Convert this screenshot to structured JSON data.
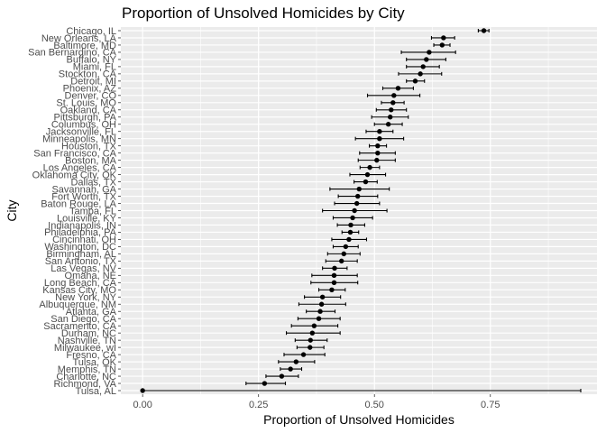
{
  "chart_data": {
    "type": "scatter",
    "title": "Proportion of Unsolved Homicides by City",
    "xlabel": "Proportion of Unsolved Homicides",
    "ylabel": "City",
    "xlim": [
      -0.047,
      0.98
    ],
    "x_ticks": [
      0.0,
      0.25,
      0.5,
      0.75
    ],
    "x_tick_labels": [
      "0.00",
      "0.25",
      "0.50",
      "0.75"
    ],
    "grid": true,
    "point_color": "#000000",
    "panel_color": "#ebebeb",
    "grid_color": "#ffffff",
    "cities": [
      {
        "name": "Chicago, IL",
        "estimate": 0.736,
        "low": 0.724,
        "high": 0.747
      },
      {
        "name": "New Orleans, LA",
        "estimate": 0.649,
        "low": 0.623,
        "high": 0.673
      },
      {
        "name": "Baltimore, MD",
        "estimate": 0.646,
        "low": 0.628,
        "high": 0.663
      },
      {
        "name": "San Bernardino, CA",
        "estimate": 0.618,
        "low": 0.558,
        "high": 0.675
      },
      {
        "name": "Buffalo, NY",
        "estimate": 0.612,
        "low": 0.569,
        "high": 0.654
      },
      {
        "name": "Miami, FL",
        "estimate": 0.605,
        "low": 0.569,
        "high": 0.64
      },
      {
        "name": "Stockton, CA",
        "estimate": 0.599,
        "low": 0.552,
        "high": 0.645
      },
      {
        "name": "Detroit, MI",
        "estimate": 0.588,
        "low": 0.569,
        "high": 0.608
      },
      {
        "name": "Phoenix, AZ",
        "estimate": 0.551,
        "low": 0.518,
        "high": 0.584
      },
      {
        "name": "Denver, CO",
        "estimate": 0.542,
        "low": 0.485,
        "high": 0.598
      },
      {
        "name": "St. Louis, MO",
        "estimate": 0.54,
        "low": 0.515,
        "high": 0.564
      },
      {
        "name": "Oakland, CA",
        "estimate": 0.536,
        "low": 0.504,
        "high": 0.569
      },
      {
        "name": "Pittsburgh, PA",
        "estimate": 0.534,
        "low": 0.494,
        "high": 0.573
      },
      {
        "name": "Columbus, OH",
        "estimate": 0.53,
        "low": 0.5,
        "high": 0.56
      },
      {
        "name": "Jacksonville, FL",
        "estimate": 0.511,
        "low": 0.482,
        "high": 0.54
      },
      {
        "name": "Minneapolis, MN",
        "estimate": 0.511,
        "low": 0.459,
        "high": 0.563
      },
      {
        "name": "Houston, TX",
        "estimate": 0.507,
        "low": 0.489,
        "high": 0.526
      },
      {
        "name": "San Francisco, CA",
        "estimate": 0.507,
        "low": 0.468,
        "high": 0.545
      },
      {
        "name": "Boston, MA",
        "estimate": 0.505,
        "low": 0.465,
        "high": 0.545
      },
      {
        "name": "Los Angeles, CA",
        "estimate": 0.49,
        "low": 0.469,
        "high": 0.511
      },
      {
        "name": "Oklahoma City, OK",
        "estimate": 0.485,
        "low": 0.447,
        "high": 0.524
      },
      {
        "name": "Dallas, TX",
        "estimate": 0.481,
        "low": 0.456,
        "high": 0.506
      },
      {
        "name": "Savannah, GA",
        "estimate": 0.467,
        "low": 0.404,
        "high": 0.532
      },
      {
        "name": "Fort Worth, TX",
        "estimate": 0.464,
        "low": 0.422,
        "high": 0.507
      },
      {
        "name": "Baton Rouge, LA",
        "estimate": 0.462,
        "low": 0.414,
        "high": 0.511
      },
      {
        "name": "Tampa, FL",
        "estimate": 0.457,
        "low": 0.388,
        "high": 0.527
      },
      {
        "name": "Louisville, KY",
        "estimate": 0.453,
        "low": 0.411,
        "high": 0.496
      },
      {
        "name": "Indianapolis, IN",
        "estimate": 0.449,
        "low": 0.42,
        "high": 0.479
      },
      {
        "name": "Philadelphia, PA",
        "estimate": 0.448,
        "low": 0.43,
        "high": 0.466
      },
      {
        "name": "Cincinnati, OH",
        "estimate": 0.445,
        "low": 0.408,
        "high": 0.483
      },
      {
        "name": "Washington, DC",
        "estimate": 0.438,
        "low": 0.411,
        "high": 0.465
      },
      {
        "name": "Birmingham, AL",
        "estimate": 0.434,
        "low": 0.399,
        "high": 0.469
      },
      {
        "name": "San Antonio, TX",
        "estimate": 0.429,
        "low": 0.395,
        "high": 0.463
      },
      {
        "name": "Las Vegas, NV",
        "estimate": 0.414,
        "low": 0.388,
        "high": 0.441
      },
      {
        "name": "Omaha, NE",
        "estimate": 0.413,
        "low": 0.365,
        "high": 0.463
      },
      {
        "name": "Long Beach, CA",
        "estimate": 0.413,
        "low": 0.363,
        "high": 0.464
      },
      {
        "name": "Kansas City, MO",
        "estimate": 0.408,
        "low": 0.38,
        "high": 0.437
      },
      {
        "name": "New York, NY",
        "estimate": 0.388,
        "low": 0.349,
        "high": 0.427
      },
      {
        "name": "Albuquerque, NM",
        "estimate": 0.386,
        "low": 0.337,
        "high": 0.438
      },
      {
        "name": "Atlanta, GA",
        "estimate": 0.383,
        "low": 0.353,
        "high": 0.415
      },
      {
        "name": "San Diego, CA",
        "estimate": 0.38,
        "low": 0.335,
        "high": 0.426
      },
      {
        "name": "Sacramento, CA",
        "estimate": 0.37,
        "low": 0.321,
        "high": 0.421
      },
      {
        "name": "Durham, NC",
        "estimate": 0.366,
        "low": 0.31,
        "high": 0.426
      },
      {
        "name": "Nashville, TN",
        "estimate": 0.362,
        "low": 0.329,
        "high": 0.398
      },
      {
        "name": "Milwaukee, wI",
        "estimate": 0.361,
        "low": 0.333,
        "high": 0.391
      },
      {
        "name": "Fresno, CA",
        "estimate": 0.347,
        "low": 0.305,
        "high": 0.393
      },
      {
        "name": "Tulsa, OK",
        "estimate": 0.331,
        "low": 0.293,
        "high": 0.371
      },
      {
        "name": "Memphis, TN",
        "estimate": 0.319,
        "low": 0.297,
        "high": 0.343
      },
      {
        "name": "Charlotte, NC",
        "estimate": 0.3,
        "low": 0.266,
        "high": 0.336
      },
      {
        "name": "Richmond, VA",
        "estimate": 0.263,
        "low": 0.223,
        "high": 0.308
      },
      {
        "name": "Tulsa, AL",
        "estimate": 0.0,
        "low": 0.0,
        "high": 0.945
      }
    ]
  }
}
